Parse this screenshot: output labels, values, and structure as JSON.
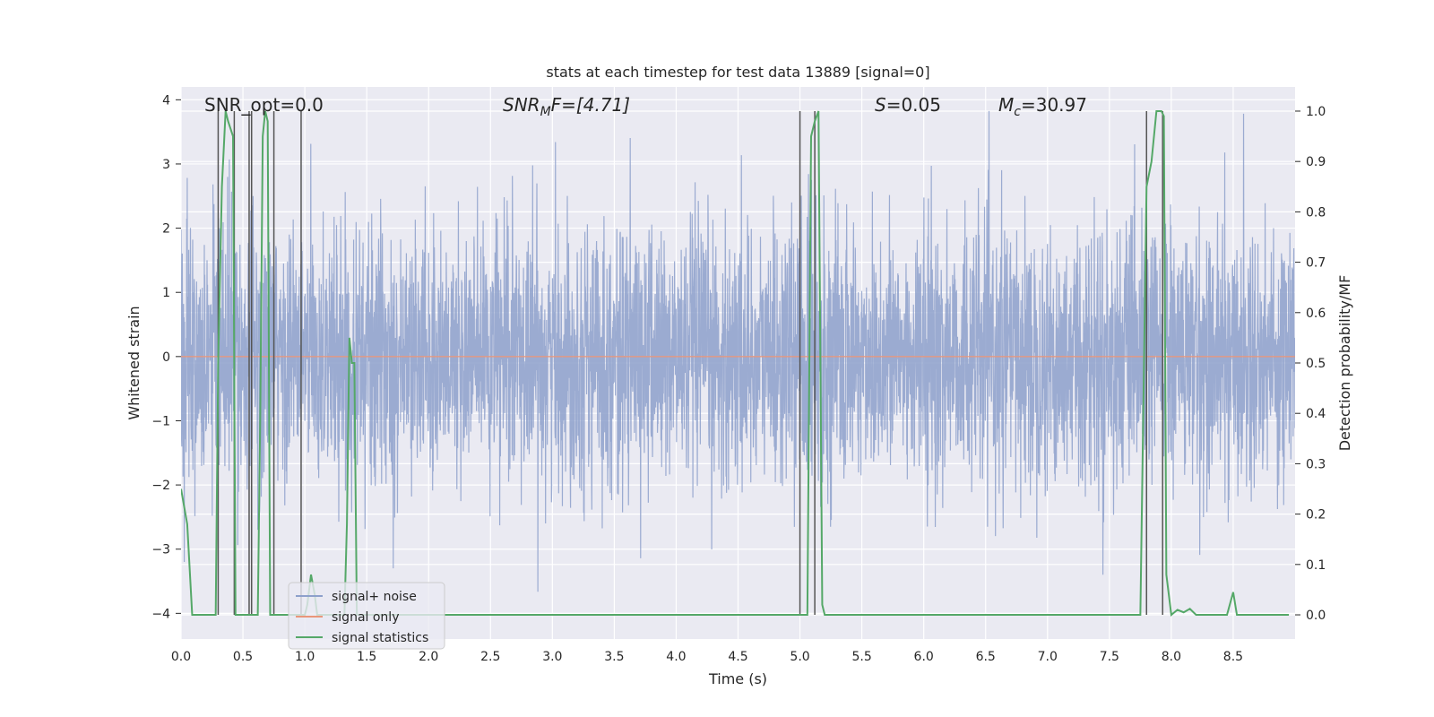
{
  "chart_data": {
    "type": "line",
    "title": "stats at each timestep for test data 13889 [signal=0]",
    "xlabel": "Time (s)",
    "ylabel": "Whitened strain",
    "y2label": "Detection probability/MF",
    "xlim": [
      0.0,
      9.0
    ],
    "ylim": [
      -4.4,
      4.2
    ],
    "y2lim": [
      -0.048,
      1.048
    ],
    "xticks": [
      "0.0",
      "0.5",
      "1.0",
      "1.5",
      "2.0",
      "2.5",
      "3.0",
      "3.5",
      "4.0",
      "4.5",
      "5.0",
      "5.5",
      "6.0",
      "6.5",
      "7.0",
      "7.5",
      "8.0",
      "8.5"
    ],
    "yticks": [
      "−4",
      "−3",
      "−2",
      "−1",
      "0",
      "1",
      "2",
      "3",
      "4"
    ],
    "y2ticks": [
      "0.0",
      "0.1",
      "0.2",
      "0.3",
      "0.4",
      "0.5",
      "0.6",
      "0.7",
      "0.8",
      "0.9",
      "1.0"
    ],
    "annotations": {
      "snr_opt": "SNR_opt=0.0",
      "snr_mf_main": "SNR",
      "snr_mf_sub": "M",
      "snr_mf_tail": "F=[4.71]",
      "s_var": "S",
      "s_val": "=0.05",
      "mc_var": "M",
      "mc_sub": "c",
      "mc_val": "=30.97"
    },
    "grid": true,
    "legend_position": "lower-left",
    "legend": [
      "signal+ noise",
      "signal only",
      "signal statistics"
    ],
    "colors": {
      "noise": "#8da0cb",
      "signal": "#e9967a",
      "stats": "#55a868",
      "background": "#eaeaf2",
      "grid": "#ffffff",
      "vline": "#555555"
    },
    "series": [
      {
        "name": "signal+ noise",
        "description_of_values": "whitened strain, ~N(0,1) noise sampled densely over 0-9 s",
        "amplitude_std": 1.0,
        "max_abs_observed": 3.9
      },
      {
        "name": "signal only",
        "values_constant": 0.0
      },
      {
        "name": "signal statistics",
        "axis": "right",
        "x": [
          0.0,
          0.05,
          0.09,
          0.15,
          0.2,
          0.25,
          0.28,
          0.3,
          0.33,
          0.36,
          0.38,
          0.42,
          0.44,
          0.47,
          0.5,
          0.55,
          0.58,
          0.6,
          0.62,
          0.64,
          0.66,
          0.68,
          0.7,
          0.72,
          0.74,
          0.76,
          0.78,
          0.8,
          0.82,
          0.85,
          0.9,
          0.95,
          1.0,
          1.02,
          1.05,
          1.08,
          1.1,
          1.13,
          1.16,
          1.2,
          1.24,
          1.28,
          1.3,
          1.32,
          1.34,
          1.36,
          1.38,
          1.4,
          1.42,
          1.44,
          1.47,
          1.5,
          1.55,
          1.6,
          2.0,
          3.0,
          4.0,
          4.5,
          4.9,
          4.97,
          5.0,
          5.03,
          5.06,
          5.09,
          5.12,
          5.15,
          5.18,
          5.2,
          5.25,
          5.3,
          6.0,
          7.0,
          7.5,
          7.75,
          7.8,
          7.84,
          7.88,
          7.92,
          7.94,
          7.96,
          8.0,
          8.05,
          8.1,
          8.15,
          8.2,
          8.25,
          8.3,
          8.35,
          8.4,
          8.45,
          8.5,
          8.53,
          8.55,
          8.6,
          8.65,
          8.7,
          8.75,
          8.8,
          8.85,
          8.9,
          8.95
        ],
        "y": [
          0.25,
          0.18,
          0.0,
          0.0,
          0.0,
          0.0,
          0.0,
          0.5,
          0.85,
          1.0,
          0.98,
          0.95,
          0.0,
          0.0,
          0.0,
          0.0,
          0.0,
          0.0,
          0.0,
          0.4,
          0.95,
          1.0,
          0.98,
          0.0,
          0.0,
          0.0,
          0.0,
          0.0,
          0.0,
          0.0,
          0.0,
          0.0,
          0.0,
          0.02,
          0.08,
          0.04,
          0.0,
          0.0,
          0.0,
          0.0,
          0.0,
          0.0,
          0.0,
          0.0,
          0.18,
          0.55,
          0.5,
          0.5,
          0.0,
          0.0,
          0.0,
          0.0,
          0.0,
          0.0,
          0.0,
          0.0,
          0.0,
          0.0,
          0.0,
          0.0,
          0.0,
          0.0,
          0.0,
          0.95,
          0.98,
          1.0,
          0.02,
          0.0,
          0.0,
          0.0,
          0.0,
          0.0,
          0.0,
          0.0,
          0.85,
          0.9,
          1.0,
          1.0,
          0.99,
          0.08,
          0.0,
          0.01,
          0.005,
          0.012,
          0.0,
          0.0,
          0.0,
          0.0,
          0.0,
          0.0,
          0.045,
          0.0,
          0.0,
          0.0,
          0.0,
          0.0,
          0.0,
          0.0,
          0.0,
          0.0,
          0.0
        ]
      }
    ],
    "vertical_lines_x": [
      0.3,
      0.43,
      0.55,
      0.57,
      0.75,
      0.97,
      5.0,
      5.12,
      7.8,
      7.93
    ]
  }
}
